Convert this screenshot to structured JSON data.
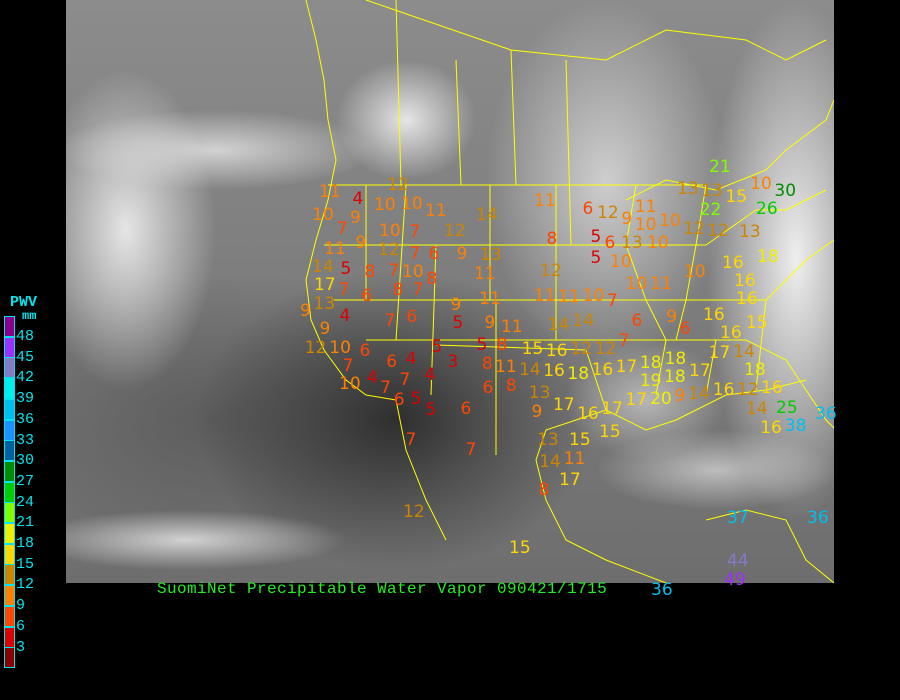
{
  "title": "SuomiNet Precipitable Water Vapor 090421/1715",
  "legend": {
    "title": "PWV",
    "unit": "mm",
    "labels": [
      "48",
      "45",
      "42",
      "39",
      "36",
      "33",
      "30",
      "27",
      "24",
      "21",
      "18",
      "15",
      "12",
      "9",
      "6",
      "3"
    ],
    "colors": [
      "#8b008b",
      "#9b30ff",
      "#8878c8",
      "#00eeee",
      "#00bfee",
      "#1e90ff",
      "#00609f",
      "#008b00",
      "#00cd00",
      "#7fff00",
      "#eeee00",
      "#ffd700",
      "#cd8500",
      "#ff8000",
      "#ff4500",
      "#dd0000",
      "#8b0000"
    ]
  },
  "boundary_color": "#ffff00",
  "stations": [
    11,
    4,
    10,
    12,
    10,
    11,
    14,
    11,
    6,
    10,
    9,
    7,
    10,
    7,
    12,
    9,
    12,
    11,
    7,
    6,
    9,
    13,
    8,
    5,
    6,
    13,
    10,
    12,
    12,
    13,
    14,
    5,
    8,
    7,
    10,
    8,
    11,
    12,
    5,
    10,
    17,
    7,
    6,
    8,
    7,
    9,
    11,
    11,
    11,
    10,
    7,
    13,
    9,
    4,
    7,
    6,
    5,
    9,
    11,
    14,
    14,
    6,
    9,
    12,
    10,
    7,
    6,
    6,
    4,
    5,
    5,
    8,
    15,
    16,
    12,
    12,
    7,
    4,
    7,
    4,
    3,
    8,
    8,
    6,
    11,
    14,
    16,
    18,
    16,
    17,
    18,
    18,
    10,
    7,
    6,
    5,
    5,
    6,
    9,
    13,
    17,
    16,
    17,
    17,
    15,
    19,
    18,
    17,
    17,
    14,
    16,
    16,
    16,
    15,
    6,
    9,
    10,
    11,
    10,
    16,
    16,
    18,
    10,
    30,
    26,
    22,
    13,
    13,
    15,
    21,
    11,
    10,
    12,
    9,
    10,
    20,
    9,
    14,
    16,
    12,
    16,
    18,
    14,
    25,
    38,
    16,
    36,
    7,
    7,
    13,
    15,
    14,
    11,
    17,
    8,
    12,
    15,
    37,
    36,
    36,
    44,
    49
  ]
}
